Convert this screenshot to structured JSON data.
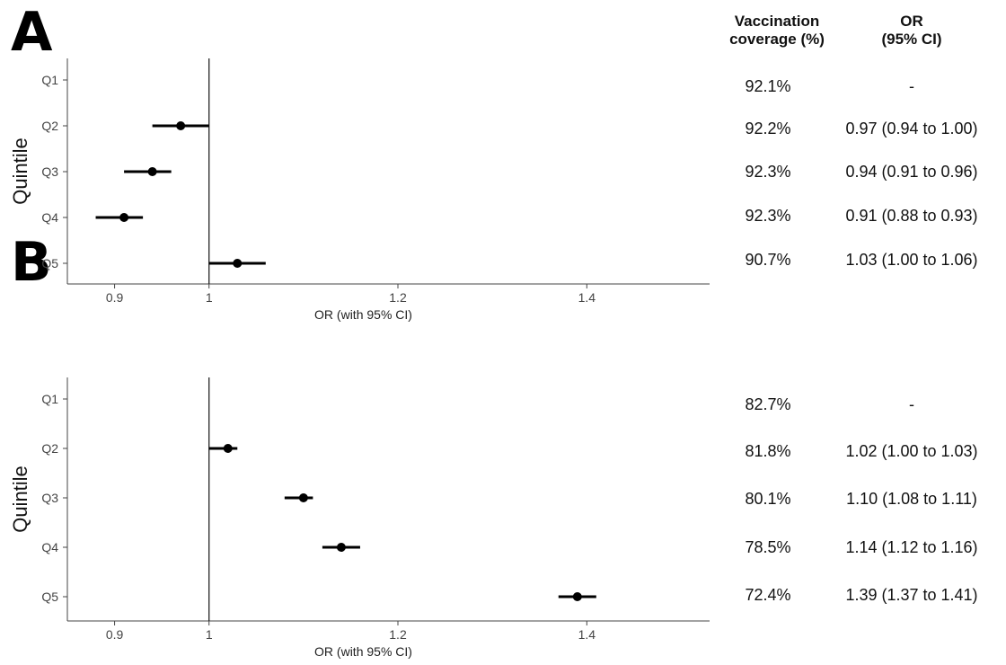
{
  "table_headers": {
    "coverage_line1": "Vaccination",
    "coverage_line2": "coverage (%)",
    "or_line1": "OR",
    "or_line2": "(95% CI)"
  },
  "chart_data": [
    {
      "panel": "A",
      "type": "scatter",
      "xlabel": "OR (with 95% CI)",
      "ylabel": "Quintile",
      "xlim": [
        0.85,
        1.53
      ],
      "xticks": [
        0.9,
        1,
        1.2,
        1.4
      ],
      "xtick_labels": [
        "0.9",
        "1",
        "1.2",
        "1.4"
      ],
      "reference_line": 1,
      "grid": false,
      "categories": [
        "Q1",
        "Q2",
        "Q3",
        "Q4",
        "Q5"
      ],
      "points": [
        {
          "q": "Q1",
          "or": null,
          "lo": null,
          "hi": null,
          "coverage": "92.1%",
          "or_text": "-"
        },
        {
          "q": "Q2",
          "or": 0.97,
          "lo": 0.94,
          "hi": 1.0,
          "coverage": "92.2%",
          "or_text": "0.97 (0.94 to 1.00)"
        },
        {
          "q": "Q3",
          "or": 0.94,
          "lo": 0.91,
          "hi": 0.96,
          "coverage": "92.3%",
          "or_text": "0.94 (0.91 to 0.96)"
        },
        {
          "q": "Q4",
          "or": 0.91,
          "lo": 0.88,
          "hi": 0.93,
          "coverage": "92.3%",
          "or_text": "0.91 (0.88 to 0.93)"
        },
        {
          "q": "Q5",
          "or": 1.03,
          "lo": 1.0,
          "hi": 1.06,
          "coverage": "90.7%",
          "or_text": "1.03 (1.00 to 1.06)"
        }
      ]
    },
    {
      "panel": "B",
      "type": "scatter",
      "xlabel": "OR (with 95% CI)",
      "ylabel": "Quintile",
      "xlim": [
        0.85,
        1.53
      ],
      "xticks": [
        0.9,
        1,
        1.2,
        1.4
      ],
      "xtick_labels": [
        "0.9",
        "1",
        "1.2",
        "1.4"
      ],
      "reference_line": 1,
      "grid": false,
      "categories": [
        "Q1",
        "Q2",
        "Q3",
        "Q4",
        "Q5"
      ],
      "points": [
        {
          "q": "Q1",
          "or": null,
          "lo": null,
          "hi": null,
          "coverage": "82.7%",
          "or_text": "-"
        },
        {
          "q": "Q2",
          "or": 1.02,
          "lo": 1.0,
          "hi": 1.03,
          "coverage": "81.8%",
          "or_text": "1.02 (1.00 to 1.03)"
        },
        {
          "q": "Q3",
          "or": 1.1,
          "lo": 1.08,
          "hi": 1.11,
          "coverage": "80.1%",
          "or_text": "1.10 (1.08 to 1.11)"
        },
        {
          "q": "Q4",
          "or": 1.14,
          "lo": 1.12,
          "hi": 1.16,
          "coverage": "78.5%",
          "or_text": "1.14 (1.12 to 1.16)"
        },
        {
          "q": "Q5",
          "or": 1.39,
          "lo": 1.37,
          "hi": 1.41,
          "coverage": "72.4%",
          "or_text": "1.39 (1.37 to 1.41)"
        }
      ]
    }
  ]
}
